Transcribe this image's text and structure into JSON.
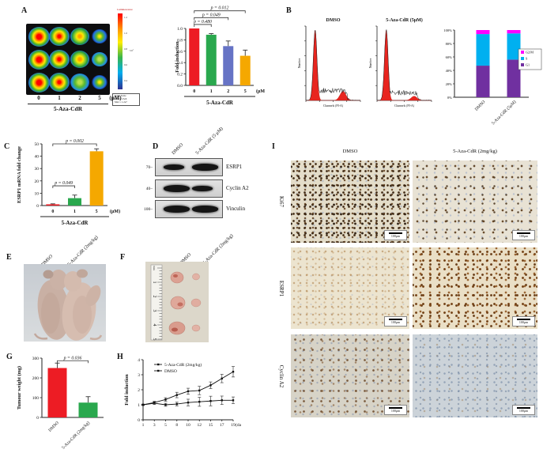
{
  "panels": {
    "a": {
      "label": "A",
      "colorbar": {
        "title": "Luminescence",
        "exponent": "×10⁷",
        "ticks": [
          "1.2",
          "1.0",
          "0.8",
          "0.6",
          "0.4"
        ],
        "note": [
          "Color Scale",
          "Min = 1.5e6",
          "Max = 1.2e7"
        ]
      },
      "doses": [
        "0",
        "1",
        "2",
        "5"
      ],
      "unit": "(μM)",
      "treatment": "5-Aza-CdR",
      "plate_grid": [
        [
          "vhigh",
          "high",
          "med",
          "low"
        ],
        [
          "vhigh",
          "high",
          "med",
          "green"
        ],
        [
          "vhigh",
          "high",
          "green",
          "low"
        ]
      ]
    },
    "b": {
      "label": "B",
      "histograms": [
        {
          "title": "DMSO",
          "xlabel": "Channels (PI-A)",
          "ylabel": "Number",
          "g1": 1.0,
          "s": 0.14,
          "g2": 0.13
        },
        {
          "title": "5-Aza-CdR (5μM)",
          "xlabel": "Channels (PI-A)",
          "ylabel": "Number",
          "g1": 1.0,
          "s": 0.11,
          "g2": 0.06
        }
      ]
    },
    "c": {
      "label": "C"
    },
    "d": {
      "label": "D",
      "col_labels": [
        "DMSO",
        "5-Aza-CdR (5 μM)"
      ],
      "blots": [
        {
          "marker": "70",
          "protein": "ESRP1",
          "bands": [
            "medium",
            "strong"
          ]
        },
        {
          "marker": "40",
          "protein": "Cyclin A2",
          "bands": [
            "strong",
            "medium"
          ]
        },
        {
          "marker": "100",
          "protein": "Vinculin",
          "bands": [
            "strong",
            "strong"
          ]
        }
      ]
    },
    "e": {
      "label": "E",
      "col_labels": [
        "DMSO",
        "5-Aza-CdR (2mg/kg)"
      ]
    },
    "f": {
      "label": "F",
      "col_labels": [
        "DMSO",
        "5-Aza-CdR (2mg/kg)"
      ],
      "ruler_ticks": [
        "0cm",
        "1",
        "2",
        "3",
        "4",
        "5"
      ]
    },
    "g": {
      "label": "G"
    },
    "h": {
      "label": "H"
    },
    "i": {
      "label": "I",
      "col_labels": [
        "DMSO",
        "5-Aza-CdR (2mg/kg)"
      ],
      "rows": [
        {
          "name": "Ki67",
          "cells": [
            "ki67-dmso",
            "ki67-aza"
          ]
        },
        {
          "name": "ESRP1",
          "cells": [
            "esrp1-dmso",
            "esrp1-aza"
          ]
        },
        {
          "name": "Cyclin A2",
          "cells": [
            "cyclin-dmso",
            "cyclin-aza"
          ]
        }
      ],
      "scale_label": "100μm"
    }
  },
  "chart_data": [
    {
      "id": "fold_induction_bar",
      "type": "bar",
      "categories": [
        "0",
        "1",
        "2",
        "5"
      ],
      "values": [
        1.0,
        0.89,
        0.69,
        0.52
      ],
      "errors": [
        0,
        0.02,
        0.09,
        0.1
      ],
      "colors": [
        "#ed1c24",
        "#2aa84e",
        "#6673c5",
        "#f5a800"
      ],
      "ylabel": "Fold induction",
      "ylim": [
        0,
        1.0
      ],
      "yticks": [
        0.0,
        0.2,
        0.4,
        0.6,
        0.8,
        1.0
      ],
      "unit_label": "(μM)",
      "xgroup": "5-Aza-CdR",
      "significance": [
        {
          "from": 0,
          "to": 1,
          "label": "p = 0.480",
          "at": 1.07
        },
        {
          "from": 0,
          "to": 2,
          "label": "p = 0.049",
          "at": 1.19
        },
        {
          "from": 0,
          "to": 3,
          "label": "p = 0.012",
          "at": 1.31
        }
      ]
    },
    {
      "id": "cell_cycle_stacked",
      "type": "stacked-bar",
      "categories": [
        "DMSO",
        "5-Aza-CdR (5μM)"
      ],
      "series": [
        {
          "name": "G1",
          "color": "#7030a0",
          "values": [
            47,
            56
          ]
        },
        {
          "name": "S",
          "color": "#00b0f0",
          "values": [
            47,
            39
          ]
        },
        {
          "name": "G2/M",
          "color": "#ff00ff",
          "values": [
            6,
            5
          ]
        }
      ],
      "yticks": [
        {
          "v": 0,
          "t": "0%"
        },
        {
          "v": 20,
          "t": "20%"
        },
        {
          "v": 40,
          "t": "40%"
        },
        {
          "v": 60,
          "t": "60%"
        },
        {
          "v": 80,
          "t": "80%"
        },
        {
          "v": 100,
          "t": "100%"
        }
      ],
      "legend_order": [
        "G2/M",
        "S",
        "G1"
      ]
    },
    {
      "id": "esrp1_mrna_bar",
      "type": "bar",
      "categories": [
        "0",
        "1",
        "5"
      ],
      "values": [
        1,
        6,
        44
      ],
      "errors": [
        0.4,
        2.5,
        2
      ],
      "colors": [
        "#ed1c24",
        "#2aa84e",
        "#f5a800"
      ],
      "ylabel": "ESRP1 mRNA fold change",
      "ylim": [
        0,
        50
      ],
      "yticks": [
        0,
        10,
        20,
        30,
        40,
        50
      ],
      "unit_label": "(μM)",
      "xgroup": "5-Aza-CdR",
      "significance": [
        {
          "from": 0,
          "to": 1,
          "label": "p = 0.049",
          "at": 16
        },
        {
          "from": 0,
          "to": 2,
          "label": "p = 0.002",
          "at": 50
        }
      ]
    },
    {
      "id": "tumour_weight_bar",
      "type": "bar",
      "categories": [
        "DMSO",
        "5-Aza-CdR (2mg/kg)"
      ],
      "values": [
        250,
        75
      ],
      "errors": [
        25,
        30
      ],
      "colors": [
        "#ed1c24",
        "#2aa84e"
      ],
      "ylabel": "Tumour weight (mg)",
      "ylim": [
        0,
        300
      ],
      "yticks": [
        0,
        100,
        200,
        300
      ],
      "significance": [
        {
          "from": 0,
          "to": 1,
          "label": "p = 0.036",
          "at": 287
        }
      ]
    },
    {
      "id": "tumour_growth_line",
      "type": "line",
      "x": [
        "1",
        "3",
        "5",
        "8",
        "10",
        "12",
        "15",
        "17",
        "19"
      ],
      "xlabel": "(day)",
      "ylabel": "Fold induction",
      "ylim": [
        0,
        4
      ],
      "yticks": [
        0,
        1,
        2,
        3,
        4
      ],
      "series": [
        {
          "name": "5-Aza-CdR (2mg/kg)",
          "values": [
            1.0,
            1.1,
            1.0,
            1.05,
            1.15,
            1.2,
            1.25,
            1.3,
            1.3
          ],
          "errors": [
            0.04,
            0.08,
            0.1,
            0.12,
            0.22,
            0.3,
            0.32,
            0.28,
            0.22
          ]
        },
        {
          "name": "DMSO",
          "values": [
            1.0,
            1.15,
            1.35,
            1.65,
            1.9,
            1.95,
            2.3,
            2.75,
            3.2
          ],
          "errors": [
            0.04,
            0.08,
            0.12,
            0.18,
            0.2,
            0.28,
            0.22,
            0.28,
            0.35
          ]
        }
      ]
    }
  ]
}
